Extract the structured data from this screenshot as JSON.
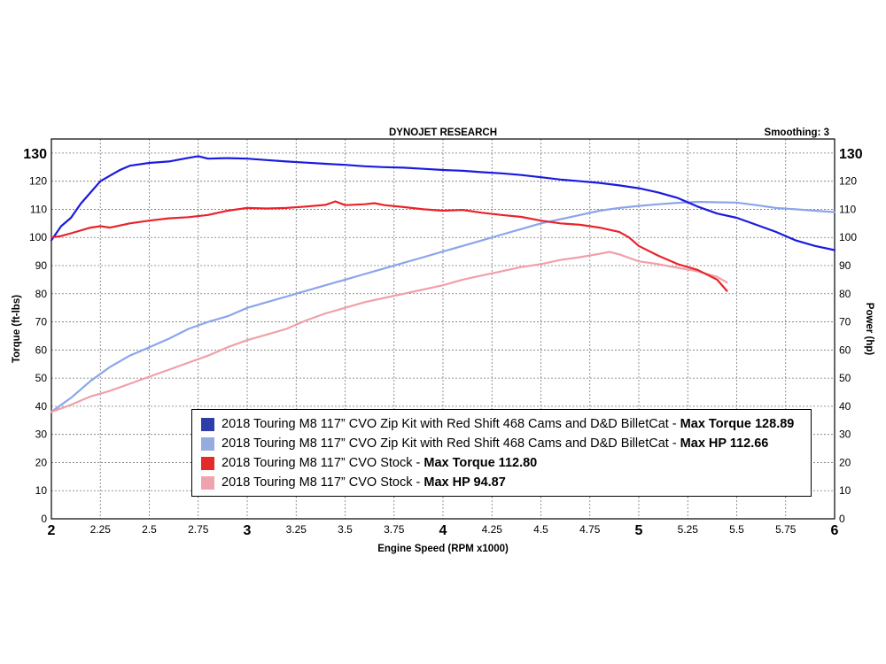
{
  "chart_data": {
    "type": "line",
    "title": "DYNOJET RESEARCH",
    "smoothing_label": "Smoothing: 3",
    "xlabel": "Engine Speed (RPM x1000)",
    "ylabel_left": "Torque (ft-lbs)",
    "ylabel_right": "Power (hp)",
    "xlim": [
      2,
      6
    ],
    "ylim": [
      0,
      135
    ],
    "x_ticks": [
      {
        "v": 2,
        "label": "2",
        "major": true
      },
      {
        "v": 2.25,
        "label": "2.25",
        "major": false
      },
      {
        "v": 2.5,
        "label": "2.5",
        "major": false
      },
      {
        "v": 2.75,
        "label": "2.75",
        "major": false
      },
      {
        "v": 3,
        "label": "3",
        "major": true
      },
      {
        "v": 3.25,
        "label": "3.25",
        "major": false
      },
      {
        "v": 3.5,
        "label": "3.5",
        "major": false
      },
      {
        "v": 3.75,
        "label": "3.75",
        "major": false
      },
      {
        "v": 4,
        "label": "4",
        "major": true
      },
      {
        "v": 4.25,
        "label": "4.25",
        "major": false
      },
      {
        "v": 4.5,
        "label": "4.5",
        "major": false
      },
      {
        "v": 4.75,
        "label": "4.75",
        "major": false
      },
      {
        "v": 5,
        "label": "5",
        "major": true
      },
      {
        "v": 5.25,
        "label": "5.25",
        "major": false
      },
      {
        "v": 5.5,
        "label": "5.5",
        "major": false
      },
      {
        "v": 5.75,
        "label": "5.75",
        "major": false
      },
      {
        "v": 6,
        "label": "6",
        "major": true
      }
    ],
    "y_ticks": [
      {
        "v": 0,
        "label": "0",
        "major": false
      },
      {
        "v": 10,
        "label": "10",
        "major": false
      },
      {
        "v": 20,
        "label": "20",
        "major": false
      },
      {
        "v": 30,
        "label": "30",
        "major": false
      },
      {
        "v": 40,
        "label": "40",
        "major": false
      },
      {
        "v": 50,
        "label": "50",
        "major": false
      },
      {
        "v": 60,
        "label": "60",
        "major": false
      },
      {
        "v": 70,
        "label": "70",
        "major": false
      },
      {
        "v": 80,
        "label": "80",
        "major": false
      },
      {
        "v": 90,
        "label": "90",
        "major": false
      },
      {
        "v": 100,
        "label": "100",
        "major": false
      },
      {
        "v": 110,
        "label": "110",
        "major": false
      },
      {
        "v": 120,
        "label": "120",
        "major": false
      },
      {
        "v": 130,
        "label": "130",
        "major": true
      }
    ],
    "grid": true,
    "legend_position": "bottom-right",
    "series": [
      {
        "color": "#1a1ae0",
        "legend_swatch": "#2d3ea8",
        "legend_text": "2018 Touring M8 117” CVO Zip Kit with Red Shift 468 Cams and D&D BilletCat - ",
        "legend_bold": "Max Torque 128.89",
        "x": [
          2.0,
          2.05,
          2.1,
          2.15,
          2.2,
          2.25,
          2.3,
          2.35,
          2.4,
          2.5,
          2.6,
          2.7,
          2.75,
          2.8,
          2.9,
          3.0,
          3.1,
          3.2,
          3.3,
          3.4,
          3.5,
          3.6,
          3.7,
          3.8,
          3.9,
          4.0,
          4.1,
          4.2,
          4.3,
          4.4,
          4.5,
          4.6,
          4.7,
          4.8,
          4.9,
          5.0,
          5.1,
          5.2,
          5.3,
          5.4,
          5.5,
          5.6,
          5.7,
          5.8,
          5.9,
          6.0
        ],
        "values": [
          99,
          104,
          107,
          112,
          116,
          120,
          122,
          124,
          125.5,
          126.5,
          127,
          128.3,
          128.89,
          128,
          128.2,
          128,
          127.5,
          127,
          126.6,
          126.2,
          125.8,
          125.3,
          125,
          124.8,
          124.4,
          124,
          123.7,
          123.2,
          122.8,
          122.2,
          121.4,
          120.6,
          120,
          119.4,
          118.5,
          117.5,
          116,
          114,
          111,
          108.5,
          107,
          104.5,
          102,
          99,
          97,
          95.5
        ]
      },
      {
        "color": "#8aa5ea",
        "legend_swatch": "#94acdf",
        "legend_text": "2018 Touring M8 117” CVO Zip Kit with Red Shift 468 Cams and D&D BilletCat - ",
        "legend_bold": "Max HP 112.66",
        "x": [
          2.0,
          2.1,
          2.2,
          2.3,
          2.4,
          2.5,
          2.6,
          2.7,
          2.8,
          2.9,
          3.0,
          3.1,
          3.2,
          3.3,
          3.4,
          3.5,
          3.6,
          3.7,
          3.8,
          3.9,
          4.0,
          4.1,
          4.2,
          4.3,
          4.4,
          4.5,
          4.6,
          4.7,
          4.8,
          4.9,
          5.0,
          5.1,
          5.2,
          5.3,
          5.4,
          5.5,
          5.6,
          5.7,
          5.8,
          5.9,
          6.0
        ],
        "values": [
          38,
          43,
          49,
          54,
          58,
          61,
          64,
          67.5,
          70,
          72,
          75,
          77,
          79,
          81,
          83,
          85,
          87,
          89,
          91,
          93,
          95,
          97,
          99,
          101,
          103,
          105,
          106.5,
          108,
          109.5,
          110.5,
          111.2,
          111.8,
          112.3,
          112.66,
          112.5,
          112.4,
          111.5,
          110.5,
          110,
          109.5,
          109
        ]
      },
      {
        "color": "#e8232b",
        "legend_swatch": "#e32b2b",
        "legend_text": "2018 Touring M8 117” CVO Stock - ",
        "legend_bold": "Max Torque 112.80",
        "x": [
          2.0,
          2.05,
          2.1,
          2.2,
          2.25,
          2.3,
          2.4,
          2.5,
          2.6,
          2.7,
          2.8,
          2.9,
          3.0,
          3.1,
          3.2,
          3.3,
          3.4,
          3.45,
          3.5,
          3.6,
          3.65,
          3.7,
          3.8,
          3.9,
          4.0,
          4.1,
          4.2,
          4.3,
          4.4,
          4.5,
          4.6,
          4.7,
          4.8,
          4.9,
          4.95,
          5.0,
          5.1,
          5.2,
          5.3,
          5.4,
          5.45
        ],
        "values": [
          100,
          100.5,
          101.5,
          103.5,
          104,
          103.5,
          105,
          106,
          106.8,
          107.2,
          108,
          109.5,
          110.5,
          110.3,
          110.5,
          111,
          111.6,
          112.8,
          111.5,
          111.8,
          112.2,
          111.5,
          110.8,
          110,
          109.5,
          109.8,
          108.8,
          108,
          107.3,
          106,
          105,
          104.5,
          103.5,
          102,
          100,
          97,
          93.5,
          90.5,
          88.5,
          85,
          81
        ]
      },
      {
        "color": "#f0a0a8",
        "legend_swatch": "#efa3ab",
        "legend_text": "2018 Touring M8 117” CVO Stock - ",
        "legend_bold": "Max HP 94.87",
        "x": [
          2.0,
          2.1,
          2.2,
          2.3,
          2.4,
          2.5,
          2.6,
          2.7,
          2.8,
          2.9,
          3.0,
          3.1,
          3.2,
          3.3,
          3.4,
          3.5,
          3.6,
          3.7,
          3.8,
          3.9,
          4.0,
          4.1,
          4.2,
          4.3,
          4.4,
          4.5,
          4.6,
          4.7,
          4.8,
          4.85,
          4.9,
          5.0,
          5.1,
          5.2,
          5.3,
          5.4,
          5.45
        ],
        "values": [
          38,
          40.5,
          43.5,
          45.5,
          48,
          50.5,
          53,
          55.5,
          58,
          61,
          63.5,
          65.5,
          67.5,
          70.5,
          73,
          75,
          77,
          78.5,
          80,
          81.5,
          83,
          85,
          86.5,
          88,
          89.5,
          90.5,
          92,
          93,
          94.2,
          94.87,
          94,
          91.5,
          90.5,
          89.2,
          88,
          86,
          84
        ]
      }
    ]
  }
}
